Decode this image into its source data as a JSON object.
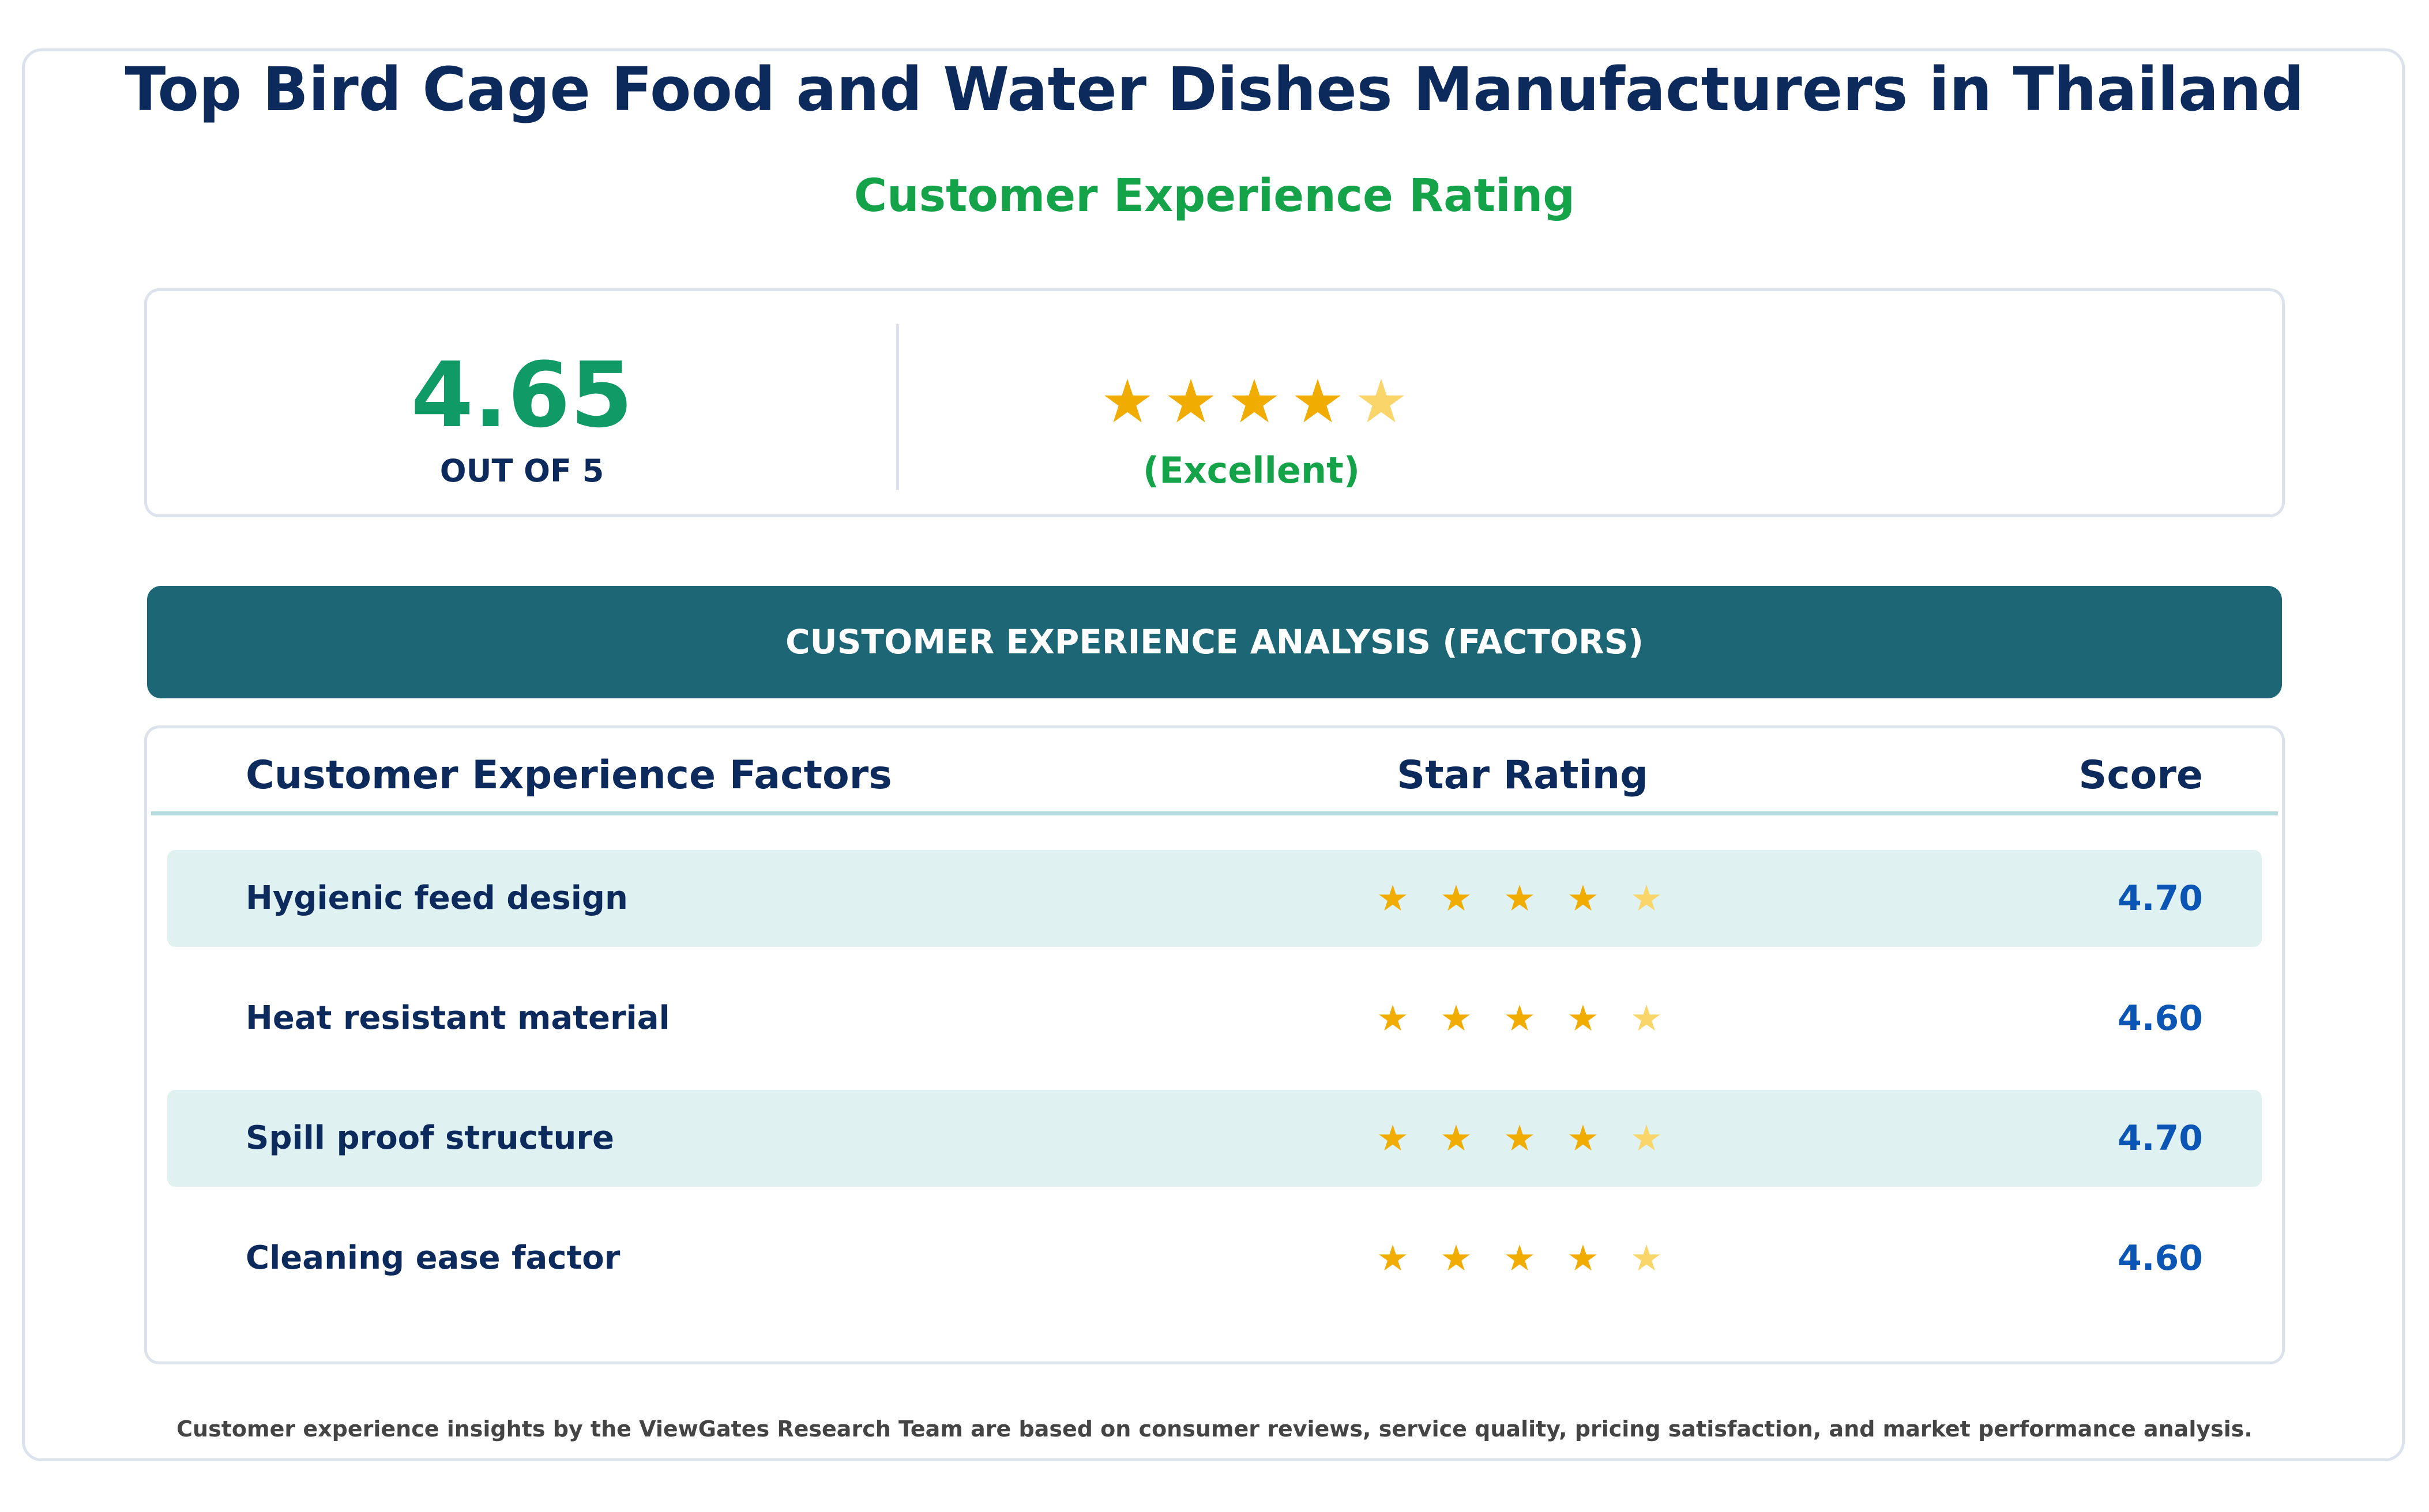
{
  "header": {
    "title": "Top Bird Cage Food and Water Dishes Manufacturers in Thailand",
    "subtitle": "Customer Experience Rating"
  },
  "summary": {
    "score": "4.65",
    "out_of_label": "OUT OF 5",
    "stars_value": 4.65,
    "stars_max": 5,
    "rating_label": "(Excellent)"
  },
  "section_band": "CUSTOMER EXPERIENCE ANALYSIS (FACTORS)",
  "table": {
    "headers": {
      "factor": "Customer Experience Factors",
      "stars": "Star Rating",
      "score": "Score"
    }
  },
  "footnote": "Customer experience insights by the ViewGates Research Team are based on consumer reviews, service quality, pricing satisfaction, and market performance analysis.",
  "colors": {
    "title": "#0d2a5c",
    "accent_green": "#15a34a",
    "score_green": "#109a66",
    "band": "#1c6675",
    "star": "#f0ac00",
    "star_partial": "#f9d56a",
    "score_blue": "#0b55b4",
    "row_shade": "#e0f1f2"
  },
  "chart_data": {
    "type": "table",
    "columns": [
      "Customer Experience Factors",
      "Star Rating",
      "Score"
    ],
    "rows": [
      {
        "factor": "Hygienic feed design",
        "score": "4.70",
        "value": 4.7
      },
      {
        "factor": "Heat resistant material",
        "score": "4.60",
        "value": 4.6
      },
      {
        "factor": "Spill proof structure",
        "score": "4.70",
        "value": 4.7
      },
      {
        "factor": "Cleaning ease factor",
        "score": "4.60",
        "value": 4.6
      }
    ],
    "max": 5
  }
}
